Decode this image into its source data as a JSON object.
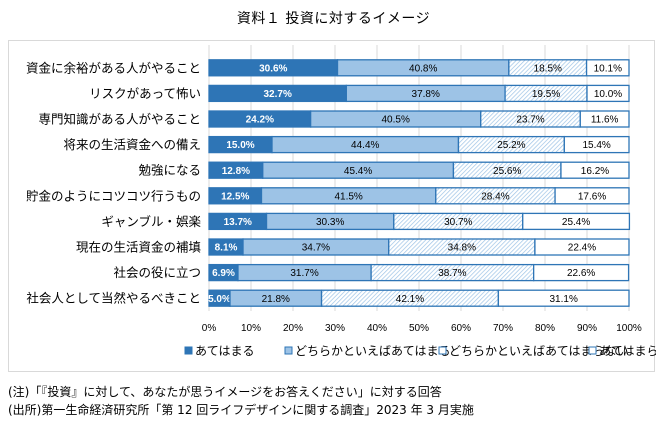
{
  "title": "資料１ 投資に対するイメージ",
  "chart_data": {
    "type": "bar",
    "orientation": "horizontal",
    "stacked": "percent",
    "title": "資料１ 投資に対するイメージ",
    "xlabel": "",
    "ylabel": "",
    "xlim": [
      0,
      100
    ],
    "x_ticks": [
      "0%",
      "10%",
      "20%",
      "30%",
      "40%",
      "50%",
      "60%",
      "70%",
      "80%",
      "90%",
      "100%"
    ],
    "grid": true,
    "legend_position": "bottom",
    "categories": [
      "資金に余裕がある人がやること",
      "リスクがあって怖い",
      "専門知識がある人がやること",
      "将来の生活資金への備え",
      "勉強になる",
      "貯金のようにコツコツ行うもの",
      "ギャンブル・娯楽",
      "現在の生活資金の補填",
      "社会の役に立つ",
      "社会人として当然やるべきこと"
    ],
    "series": [
      {
        "name": "あてはまる",
        "color": "#2e75b6",
        "pattern": "solid",
        "values": [
          30.6,
          32.7,
          24.2,
          15.0,
          12.8,
          12.5,
          13.7,
          8.1,
          6.9,
          5.0
        ],
        "labels": [
          "30.6%",
          "32.7%",
          "24.2%",
          "15.0%",
          "12.8%",
          "12.5%",
          "13.7%",
          "8.1%",
          "6.9%",
          "5.0%"
        ]
      },
      {
        "name": "どちらかといえばあてはまる",
        "color": "#9dc3e6",
        "pattern": "solid",
        "values": [
          40.8,
          37.8,
          40.5,
          44.4,
          45.4,
          41.5,
          30.3,
          34.7,
          31.7,
          21.8
        ],
        "labels": [
          "40.8%",
          "37.8%",
          "40.5%",
          "44.4%",
          "45.4%",
          "41.5%",
          "30.3%",
          "34.7%",
          "31.7%",
          "21.8%"
        ]
      },
      {
        "name": "どちらかといえばあてはまらない",
        "color": "#bdd7ee",
        "pattern": "hatched",
        "values": [
          18.5,
          19.5,
          23.7,
          25.2,
          25.6,
          28.4,
          30.7,
          34.8,
          38.7,
          42.1
        ],
        "labels": [
          "18.5%",
          "19.5%",
          "23.7%",
          "25.2%",
          "25.6%",
          "28.4%",
          "30.7%",
          "34.8%",
          "38.7%",
          "42.1%"
        ]
      },
      {
        "name": "あてはまらない",
        "color": "#ffffff",
        "pattern": "solid",
        "values": [
          10.1,
          10.0,
          11.6,
          15.4,
          16.2,
          17.6,
          25.4,
          22.4,
          22.6,
          31.1
        ],
        "labels": [
          "10.1%",
          "10.0%",
          "11.6%",
          "15.4%",
          "16.2%",
          "17.6%",
          "25.4%",
          "22.4%",
          "22.6%",
          "31.1%"
        ]
      }
    ],
    "border_color": "#2e75b6",
    "gridline_color": "#d9d9d9"
  },
  "notes": {
    "note": "(注)「『投資』に対して、あなたが思うイメージをお答えください」に対する回答",
    "source": "(出所)第一生命経済研究所「第 12 回ライフデザインに関する調査」2023 年 3 月実施"
  }
}
